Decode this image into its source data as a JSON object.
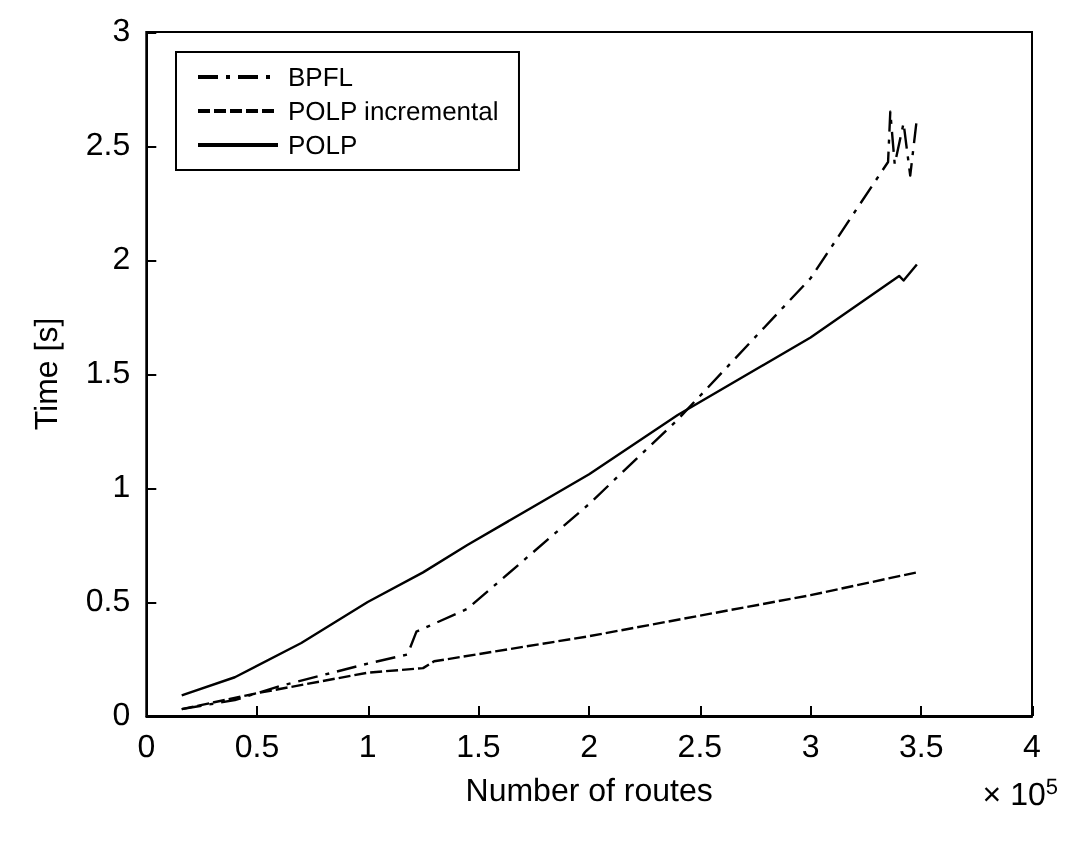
{
  "chart_data": {
    "type": "line",
    "xlabel": "Number of routes",
    "ylabel": "Time [s]",
    "annotations": [
      "× 10$^{5}$"
    ],
    "xlim": [
      0,
      4
    ],
    "xticks": [
      0,
      0.5,
      1,
      1.5,
      2,
      2.5,
      3,
      3.5,
      4
    ],
    "ylim": [
      0,
      3
    ],
    "yticks": [
      0,
      0.5,
      1,
      1.5,
      2,
      2.5,
      3
    ],
    "grid": false,
    "legend": "top left",
    "marker": "none",
    "series": [
      {
        "name": "BPFL",
        "color": "#000000",
        "line_style": "dashdot",
        "x": [
          0.16,
          0.4,
          0.6,
          0.8,
          1,
          1.18,
          1.22,
          1.45,
          2,
          2.4,
          3,
          3.35,
          3.36,
          3.38,
          3.42,
          3.45,
          3.48
        ],
        "values": [
          0.03,
          0.07,
          0.13,
          0.18,
          0.23,
          0.27,
          0.37,
          0.47,
          0.93,
          1.3,
          1.92,
          2.43,
          2.65,
          2.42,
          2.6,
          2.37,
          2.62
        ]
      },
      {
        "name": "POLP incremental",
        "color": "#000000",
        "line_style": "dashed",
        "x": [
          0.16,
          0.5,
          1,
          1.25,
          1.3,
          2,
          3,
          3.48
        ],
        "values": [
          0.03,
          0.1,
          0.19,
          0.21,
          0.24,
          0.35,
          0.53,
          0.63
        ]
      },
      {
        "name": "POLP",
        "color": "#000000",
        "line_style": "solid",
        "x": [
          0.16,
          0.4,
          0.7,
          1,
          1.25,
          1.45,
          2,
          2.4,
          3,
          3.4,
          3.42,
          3.48
        ],
        "values": [
          0.09,
          0.17,
          0.32,
          0.5,
          0.63,
          0.75,
          1.06,
          1.32,
          1.66,
          1.93,
          1.91,
          1.98
        ]
      }
    ]
  }
}
